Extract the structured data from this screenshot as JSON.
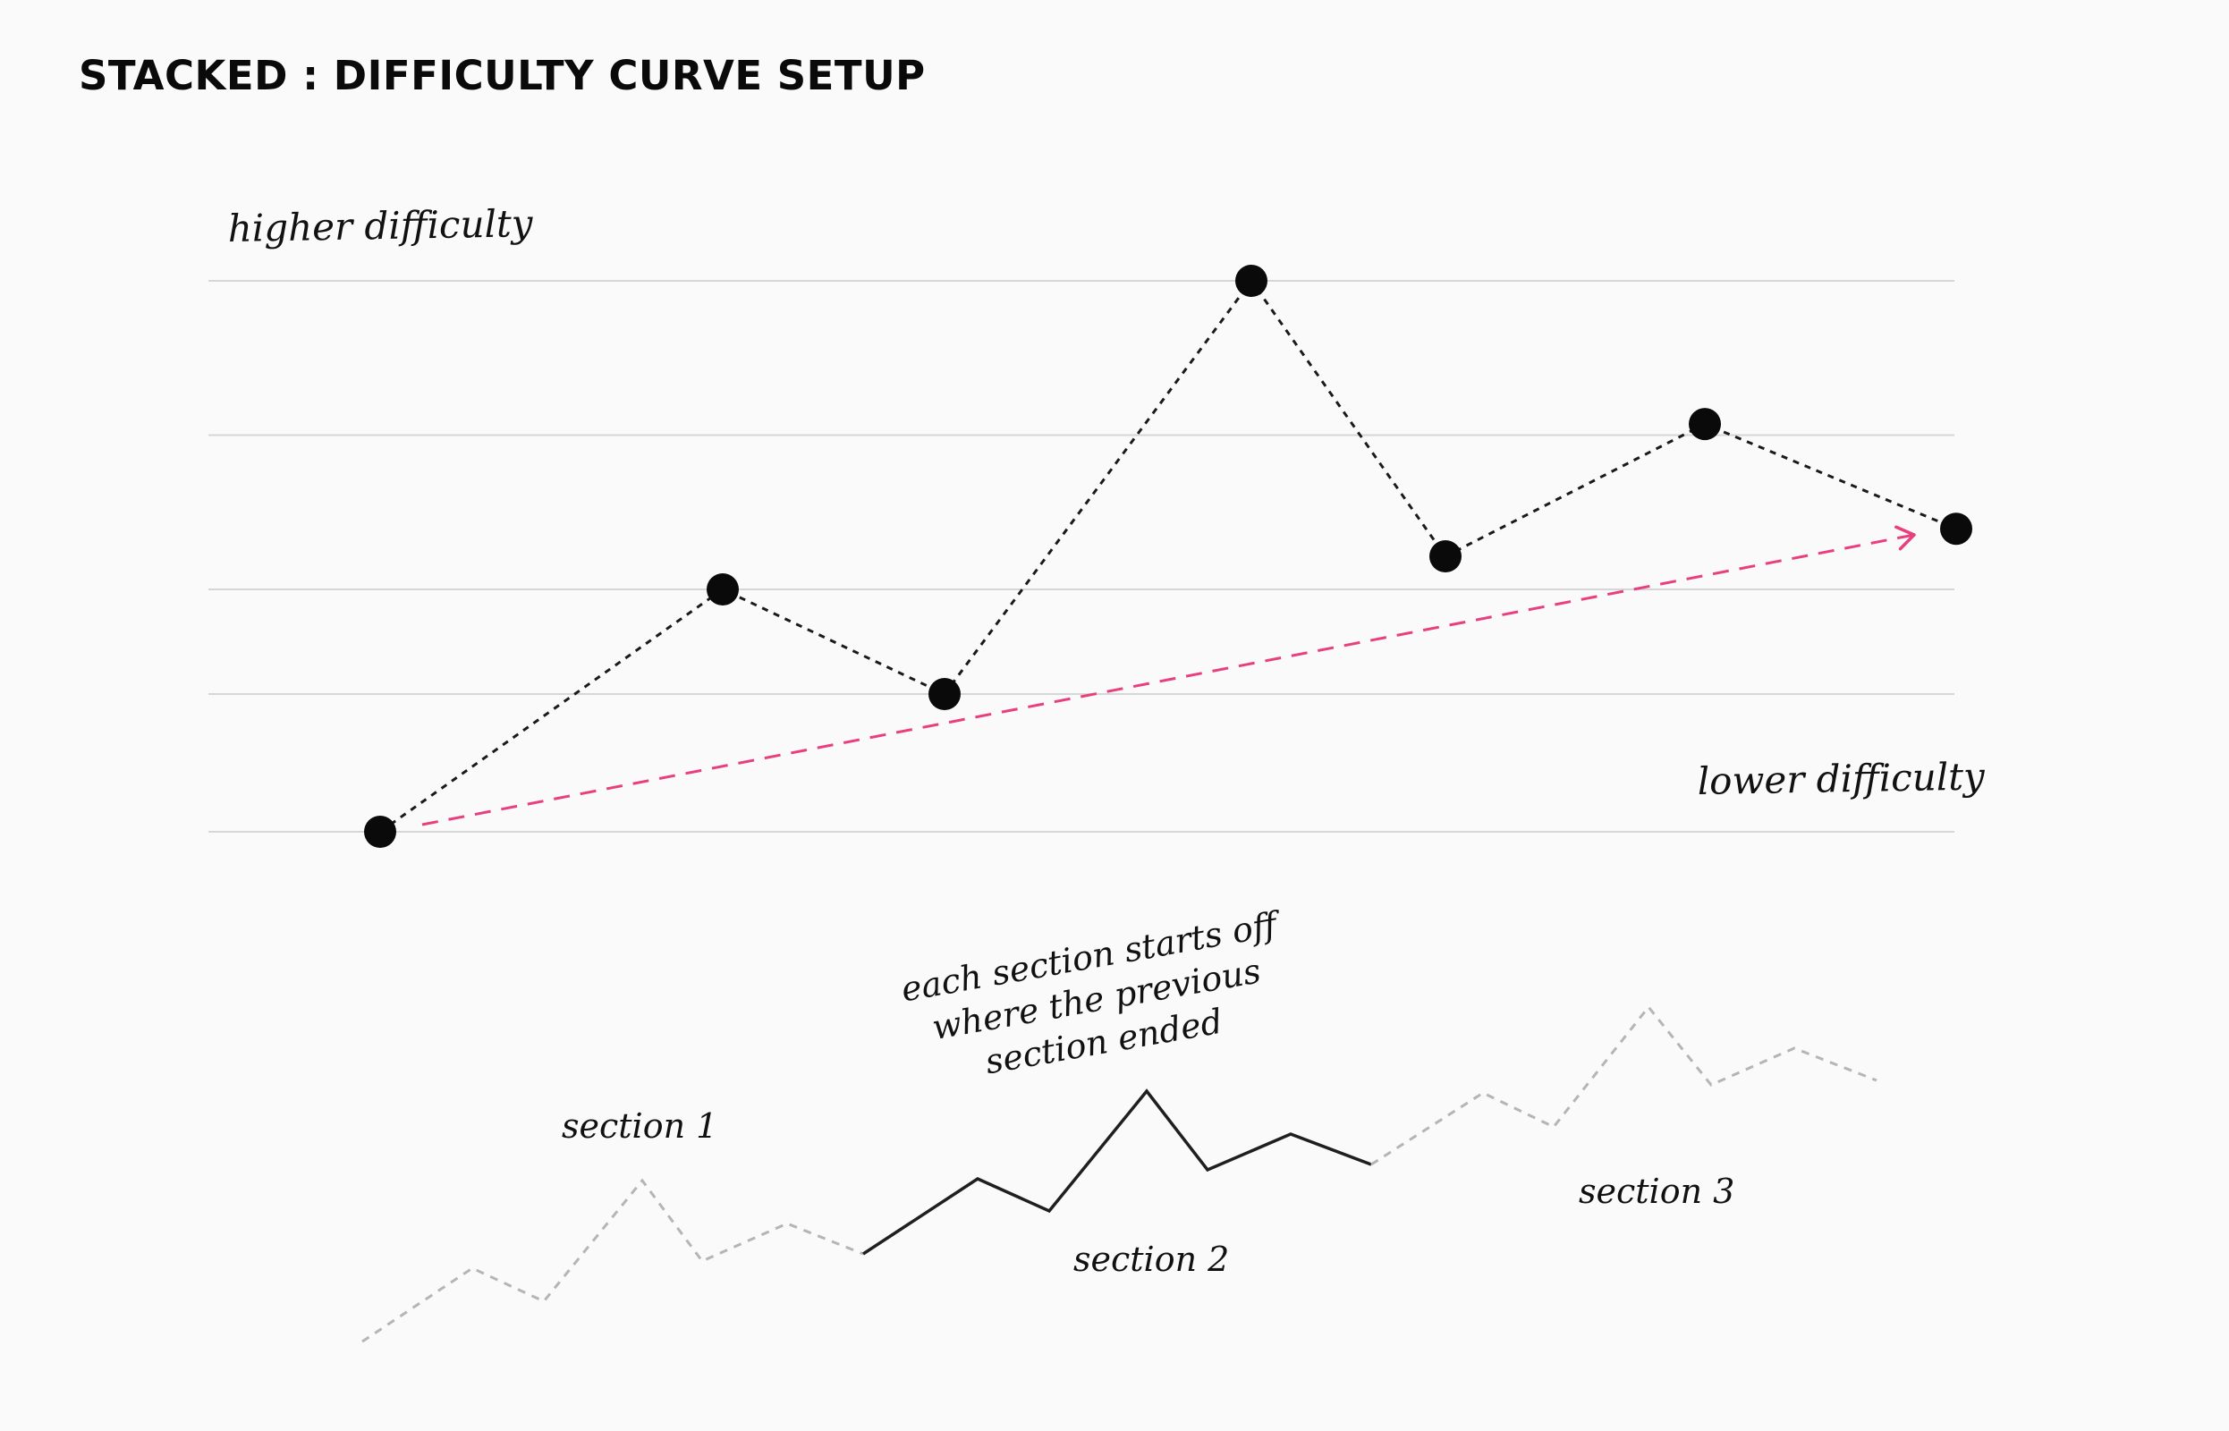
{
  "title": "STACKED : DIFFICULTY CURVE SETUP",
  "labels": {
    "higher": "higher difficulty",
    "lower": "lower difficulty",
    "section1": "section 1",
    "section2": "section 2",
    "section3": "section 3",
    "note_line1": "each section starts off",
    "note_line2": "where the previous",
    "note_line3": "section ended"
  },
  "colors": {
    "background": "#fafafa",
    "curve": "#1a1a1a",
    "trend_arrow": "#e8407f",
    "gridline": "#d6d6d6",
    "faded_section": "#b5b5b5"
  },
  "chart_data": {
    "type": "line",
    "title": "STACKED : DIFFICULTY CURVE SETUP",
    "xlabel": "",
    "ylabel": "",
    "series": [
      {
        "values": [
          0,
          4.4,
          2.5,
          10,
          5,
          7.4,
          5.5
        ]
      }
    ],
    "trend": {
      "from": 0,
      "to": 5
    },
    "ylim": [
      0,
      10
    ],
    "grid_levels": [
      0,
      2.5,
      4.4,
      7.2,
      10
    ],
    "grid": true,
    "legend": "none"
  }
}
